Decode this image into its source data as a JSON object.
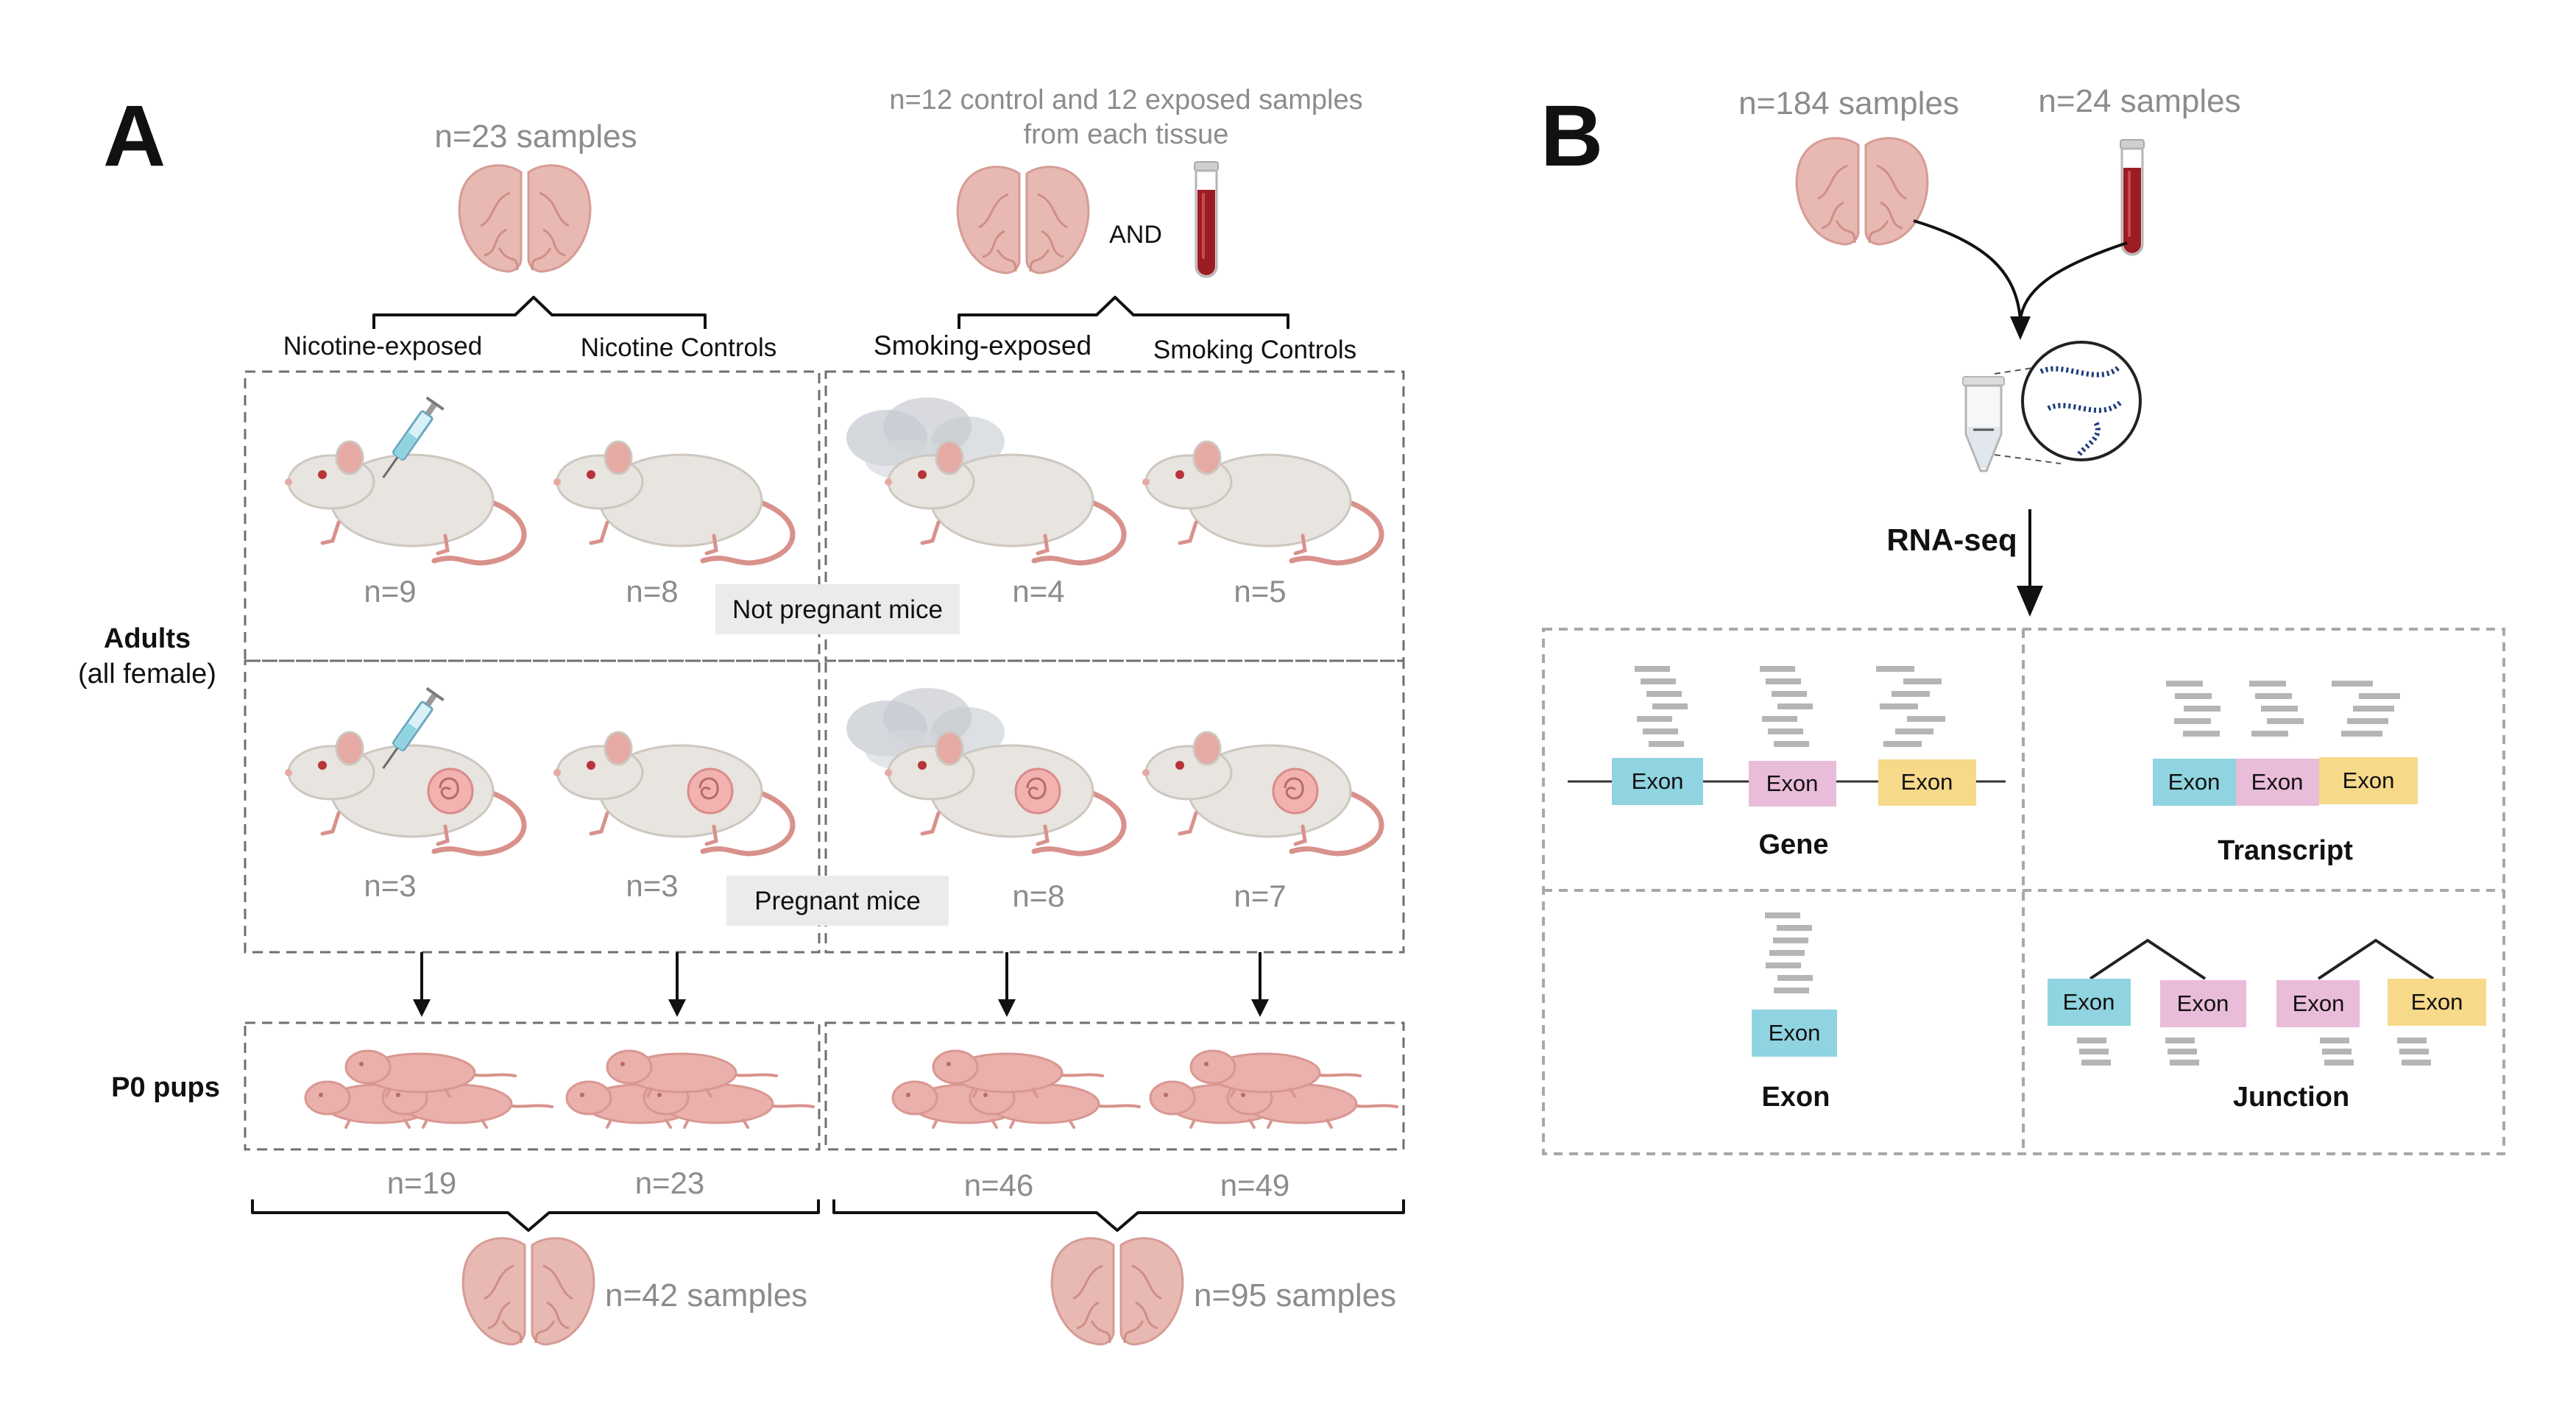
{
  "panel_a": {
    "letter": "A",
    "top_left_count": "n=23 samples",
    "top_right_line1": "n=12 control and 12 exposed  samples",
    "top_right_line2": "from each tissue",
    "and_label": "AND",
    "groups": [
      "Nicotine-exposed",
      "Nicotine Controls",
      "Smoking-exposed",
      "Smoking Controls"
    ],
    "row_label_adults_line1": "Adults",
    "row_label_adults_line2": "(all female)",
    "row_label_pups": "P0 pups",
    "not_pregnant_label": "Not pregnant mice",
    "pregnant_label": "Pregnant mice",
    "not_pregnant_counts": [
      "n=9",
      "n=8",
      "n=4",
      "n=5"
    ],
    "pregnant_counts": [
      "n=3",
      "n=3",
      "n=8",
      "n=7"
    ],
    "pup_counts": [
      "n=19",
      "n=23",
      "n=46",
      "n=49"
    ],
    "bottom_left_count": "n=42 samples",
    "bottom_right_count": "n=95 samples"
  },
  "panel_b": {
    "letter": "B",
    "brain_count": "n=184 samples",
    "blood_count": "n=24 samples",
    "method_label": "RNA-seq",
    "exon_label": "Exon",
    "quadrants": [
      "Gene",
      "Transcript",
      "Exon",
      "Junction"
    ]
  },
  "colors": {
    "brain": "#e8b8b2",
    "blood": "#9c1c24",
    "mouse_body": "#e8e4df",
    "mouse_tail": "#d9918c",
    "exon_blue": "#8fd4e0",
    "exon_pink": "#e9bcd9",
    "exon_yellow": "#f7d98a",
    "read_gray": "#b5b5b5"
  },
  "icons": [
    "brain-icon",
    "blood-tube-icon",
    "mouse-icon",
    "syringe-icon",
    "smoke-icon",
    "embryo-icon",
    "pup-icon",
    "tube-icon",
    "rna-icon"
  ]
}
